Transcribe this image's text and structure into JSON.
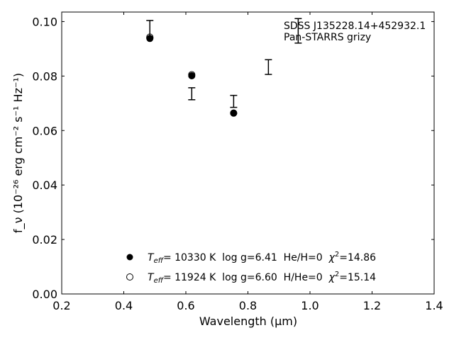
{
  "chart_data": {
    "type": "scatter",
    "title": "",
    "xlabel": "Wavelength (μm)",
    "ylabel": "f_ν (10⁻²⁶ erg cm⁻² s⁻¹ Hz⁻¹)",
    "xlim": [
      0.2,
      1.4
    ],
    "ylim": [
      0.0,
      0.1035
    ],
    "xticks": [
      0.2,
      0.4,
      0.6,
      0.8,
      1.0,
      1.2,
      1.4
    ],
    "xtick_labels": [
      "0.2",
      "0.4",
      "0.6",
      "0.8",
      "1.0",
      "1.2",
      "1.4"
    ],
    "yticks": [
      0.0,
      0.02,
      0.04,
      0.06,
      0.08,
      0.1
    ],
    "ytick_labels": [
      "0.00",
      "0.02",
      "0.04",
      "0.06",
      "0.08",
      "0.10"
    ],
    "grid": false,
    "annotation": {
      "line1": "SDSS J135228.14+452932.1",
      "line2": "Pan-STARRS grizy"
    },
    "observed": {
      "x": [
        0.484,
        0.619,
        0.754,
        0.866,
        0.962
      ],
      "y": [
        0.0972,
        0.0735,
        0.0707,
        0.0833,
        0.0966
      ],
      "yerr": [
        0.0032,
        0.0022,
        0.0022,
        0.0027,
        0.0045
      ]
    },
    "series": [
      {
        "marker": "filled-circle",
        "x": [
          0.484,
          0.619,
          0.754
        ],
        "y": [
          0.0938,
          0.0801,
          0.0664
        ]
      },
      {
        "marker": "open-circle",
        "x": [
          0.484,
          0.619,
          0.754
        ],
        "y": [
          0.0943,
          0.0805,
          0.0664
        ]
      }
    ],
    "legend": {
      "placement": "lower-center",
      "entries": [
        {
          "marker": "filled-circle",
          "teff_label": "T",
          "teff_sub": "eff",
          "text": "= 10330 K  log g=6.41  He/H=0  ",
          "chi_label": "χ",
          "chi_sup": "2",
          "chi_text": "=14.86"
        },
        {
          "marker": "open-circle",
          "teff_label": "T",
          "teff_sub": "eff",
          "text": "= 11924 K  log g=6.60  H/He=0  ",
          "chi_label": "χ",
          "chi_sup": "2",
          "chi_text": "=15.14"
        }
      ]
    },
    "colors": {
      "marker": "#000000",
      "errorbar": "#000000"
    }
  }
}
